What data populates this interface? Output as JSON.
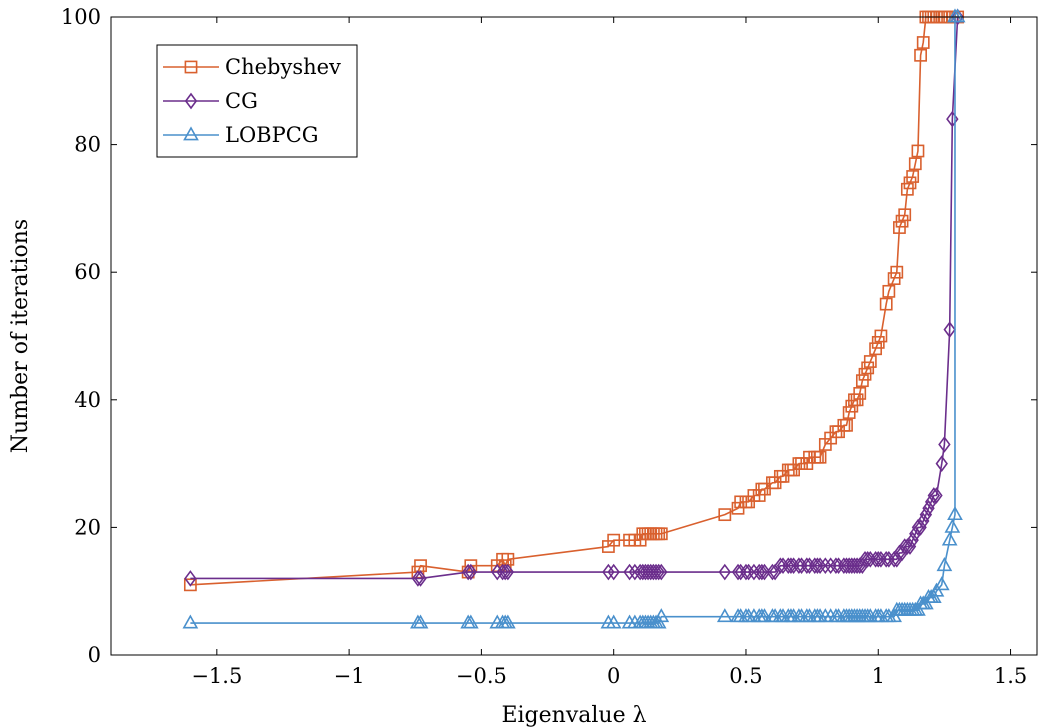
{
  "chart_data": {
    "type": "line",
    "xlabel": "Eigenvalue λ",
    "ylabel": "Number of iterations",
    "xlim": [
      -1.9,
      1.6
    ],
    "ylim": [
      0,
      100
    ],
    "x_ticks": [
      -1.5,
      -1,
      -0.5,
      0,
      0.5,
      1,
      1.5
    ],
    "x_tick_labels": [
      "−1.5",
      "−1",
      "−0.5",
      "0",
      "0.5",
      "1",
      "1.5"
    ],
    "y_ticks": [
      0,
      20,
      40,
      60,
      80,
      100
    ],
    "y_tick_labels": [
      "0",
      "20",
      "40",
      "60",
      "80",
      "100"
    ],
    "grid": false,
    "legend_position": "top-left",
    "series": [
      {
        "name": "Chebyshev",
        "color": "#d9602e",
        "marker": "square",
        "x": [
          -1.6,
          -0.74,
          -0.73,
          -0.55,
          -0.54,
          -0.44,
          -0.42,
          -0.41,
          -0.4,
          -0.02,
          0.0,
          0.06,
          0.08,
          0.1,
          0.11,
          0.12,
          0.13,
          0.14,
          0.15,
          0.16,
          0.17,
          0.18,
          0.42,
          0.47,
          0.48,
          0.5,
          0.51,
          0.53,
          0.55,
          0.56,
          0.57,
          0.6,
          0.61,
          0.63,
          0.64,
          0.66,
          0.67,
          0.68,
          0.7,
          0.71,
          0.73,
          0.74,
          0.76,
          0.77,
          0.78,
          0.8,
          0.82,
          0.84,
          0.85,
          0.87,
          0.88,
          0.89,
          0.9,
          0.91,
          0.92,
          0.93,
          0.94,
          0.95,
          0.96,
          0.97,
          0.99,
          1.0,
          1.01,
          1.03,
          1.04,
          1.06,
          1.07,
          1.08,
          1.09,
          1.1,
          1.11,
          1.12,
          1.13,
          1.14,
          1.15,
          1.16,
          1.17,
          1.18,
          1.19,
          1.2,
          1.21,
          1.22,
          1.24,
          1.25,
          1.27,
          1.28,
          1.3
        ],
        "values": [
          11,
          13,
          14,
          13,
          14,
          14,
          15,
          14,
          15,
          17,
          18,
          18,
          18,
          18,
          19,
          19,
          19,
          19,
          19,
          19,
          19,
          19,
          22,
          23,
          24,
          24,
          24,
          25,
          25,
          26,
          26,
          27,
          27,
          28,
          28,
          29,
          29,
          29,
          30,
          30,
          30,
          31,
          31,
          31,
          31,
          33,
          34,
          35,
          35,
          36,
          36,
          38,
          39,
          40,
          40,
          41,
          43,
          44,
          45,
          46,
          48,
          49,
          50,
          55,
          57,
          59,
          60,
          67,
          68,
          69,
          73,
          74,
          75,
          77,
          79,
          94,
          96,
          100,
          100,
          100,
          100,
          100,
          100,
          100,
          100,
          100,
          100
        ]
      },
      {
        "name": "CG",
        "color": "#6b2e8c",
        "marker": "diamond",
        "x": [
          -1.6,
          -0.74,
          -0.73,
          -0.55,
          -0.54,
          -0.44,
          -0.42,
          -0.41,
          -0.4,
          -0.02,
          0.0,
          0.06,
          0.08,
          0.1,
          0.11,
          0.12,
          0.13,
          0.14,
          0.15,
          0.16,
          0.17,
          0.18,
          0.42,
          0.47,
          0.48,
          0.5,
          0.51,
          0.53,
          0.55,
          0.56,
          0.57,
          0.6,
          0.61,
          0.63,
          0.64,
          0.66,
          0.67,
          0.68,
          0.7,
          0.71,
          0.73,
          0.74,
          0.76,
          0.77,
          0.78,
          0.8,
          0.82,
          0.84,
          0.85,
          0.87,
          0.88,
          0.89,
          0.9,
          0.91,
          0.92,
          0.93,
          0.94,
          0.95,
          0.96,
          0.97,
          0.99,
          1.0,
          1.01,
          1.03,
          1.04,
          1.06,
          1.07,
          1.08,
          1.09,
          1.1,
          1.11,
          1.12,
          1.13,
          1.14,
          1.15,
          1.16,
          1.17,
          1.18,
          1.19,
          1.2,
          1.21,
          1.22,
          1.24,
          1.25,
          1.27,
          1.28,
          1.3
        ],
        "values": [
          12,
          12,
          12,
          13,
          13,
          13,
          13,
          13,
          13,
          13,
          13,
          13,
          13,
          13,
          13,
          13,
          13,
          13,
          13,
          13,
          13,
          13,
          13,
          13,
          13,
          13,
          13,
          13,
          13,
          13,
          13,
          13,
          13,
          14,
          14,
          14,
          14,
          14,
          14,
          14,
          14,
          14,
          14,
          14,
          14,
          14,
          14,
          14,
          14,
          14,
          14,
          14,
          14,
          14,
          14,
          14,
          14,
          15,
          15,
          15,
          15,
          15,
          15,
          15,
          15,
          15,
          15,
          16,
          16,
          17,
          17,
          17,
          18,
          19,
          20,
          20,
          21,
          22,
          23,
          24,
          25,
          25,
          30,
          33,
          51,
          84,
          100
        ]
      },
      {
        "name": "LOBPCG",
        "color": "#4a90cc",
        "marker": "triangle",
        "x": [
          -1.6,
          -0.74,
          -0.73,
          -0.55,
          -0.54,
          -0.44,
          -0.42,
          -0.41,
          -0.4,
          -0.02,
          0.0,
          0.06,
          0.08,
          0.1,
          0.11,
          0.12,
          0.13,
          0.14,
          0.15,
          0.16,
          0.17,
          0.18,
          0.42,
          0.47,
          0.48,
          0.5,
          0.51,
          0.53,
          0.55,
          0.56,
          0.57,
          0.6,
          0.61,
          0.63,
          0.64,
          0.66,
          0.67,
          0.68,
          0.7,
          0.71,
          0.73,
          0.74,
          0.76,
          0.77,
          0.78,
          0.8,
          0.82,
          0.84,
          0.85,
          0.87,
          0.88,
          0.89,
          0.9,
          0.91,
          0.92,
          0.93,
          0.94,
          0.95,
          0.96,
          0.97,
          0.99,
          1.0,
          1.01,
          1.03,
          1.04,
          1.06,
          1.07,
          1.08,
          1.09,
          1.1,
          1.11,
          1.12,
          1.13,
          1.14,
          1.15,
          1.16,
          1.17,
          1.18,
          1.19,
          1.2,
          1.21,
          1.22,
          1.24,
          1.25,
          1.27,
          1.28,
          1.29,
          1.29,
          1.3
        ],
        "values": [
          5,
          5,
          5,
          5,
          5,
          5,
          5,
          5,
          5,
          5,
          5,
          5,
          5,
          5,
          5,
          5,
          5,
          5,
          5,
          5,
          5,
          6,
          6,
          6,
          6,
          6,
          6,
          6,
          6,
          6,
          6,
          6,
          6,
          6,
          6,
          6,
          6,
          6,
          6,
          6,
          6,
          6,
          6,
          6,
          6,
          6,
          6,
          6,
          6,
          6,
          6,
          6,
          6,
          6,
          6,
          6,
          6,
          6,
          6,
          6,
          6,
          6,
          6,
          6,
          6,
          6,
          7,
          7,
          7,
          7,
          7,
          7,
          7,
          7,
          7,
          8,
          8,
          8,
          9,
          9,
          9,
          10,
          11,
          14,
          18,
          20,
          22,
          100,
          100
        ]
      }
    ]
  }
}
